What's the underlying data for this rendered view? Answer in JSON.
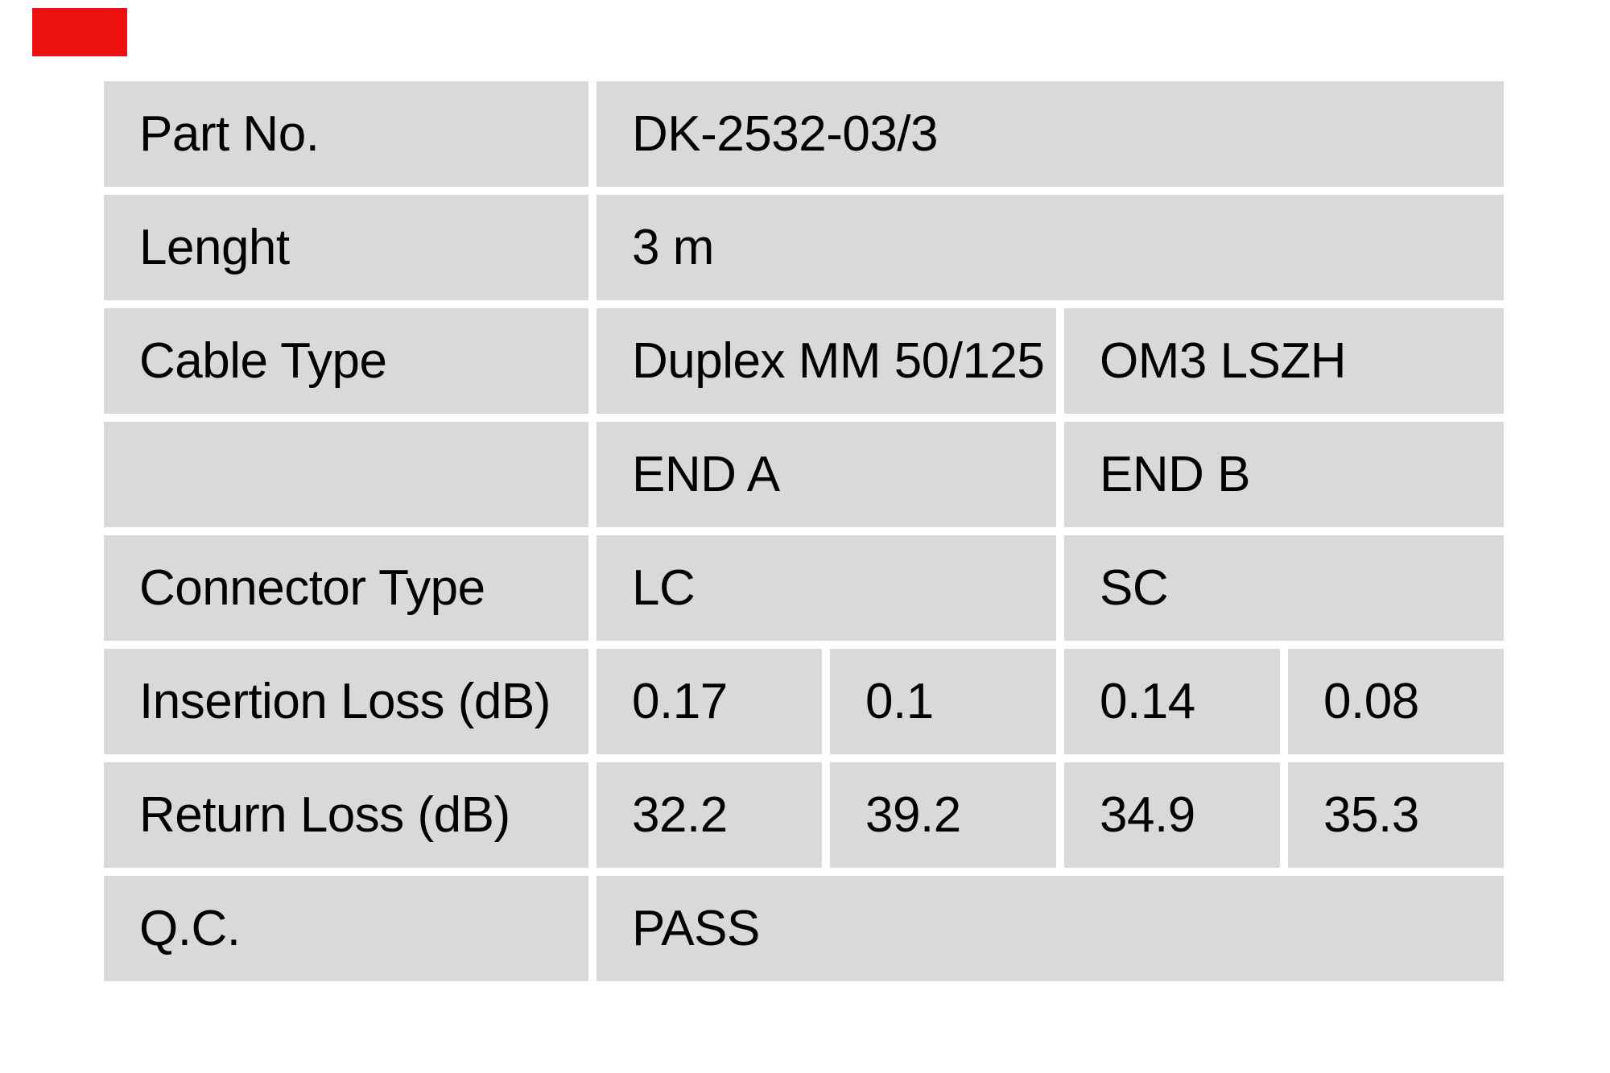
{
  "page": {
    "background": "#ffffff"
  },
  "brand_mark": {
    "color": "#ee1111"
  },
  "table": {
    "cell_background": "#d9d9d9",
    "text_color": "#000000",
    "rows": [
      {
        "cells": [
          {
            "text": "Part No."
          },
          {
            "text": "DK-2532-03/3"
          }
        ]
      },
      {
        "cells": [
          {
            "text": "Lenght"
          },
          {
            "text": "3 m"
          }
        ]
      },
      {
        "cells": [
          {
            "text": "Cable Type"
          },
          {
            "text": "Duplex MM 50/125"
          },
          {
            "text": "OM3 LSZH"
          }
        ]
      },
      {
        "cells": [
          {
            "text": ""
          },
          {
            "text": "END A"
          },
          {
            "text": "END B"
          }
        ]
      },
      {
        "cells": [
          {
            "text": "Connector Type"
          },
          {
            "text": "LC"
          },
          {
            "text": "SC"
          }
        ]
      },
      {
        "cells": [
          {
            "text": "Insertion Loss (dB)"
          },
          {
            "text": "0.17"
          },
          {
            "text": "0.1"
          },
          {
            "text": "0.14"
          },
          {
            "text": "0.08"
          }
        ]
      },
      {
        "cells": [
          {
            "text": "Return Loss (dB)"
          },
          {
            "text": "32.2"
          },
          {
            "text": "39.2"
          },
          {
            "text": "34.9"
          },
          {
            "text": "35.3"
          }
        ]
      },
      {
        "cells": [
          {
            "text": "Q.C."
          },
          {
            "text": "PASS"
          }
        ]
      }
    ]
  }
}
